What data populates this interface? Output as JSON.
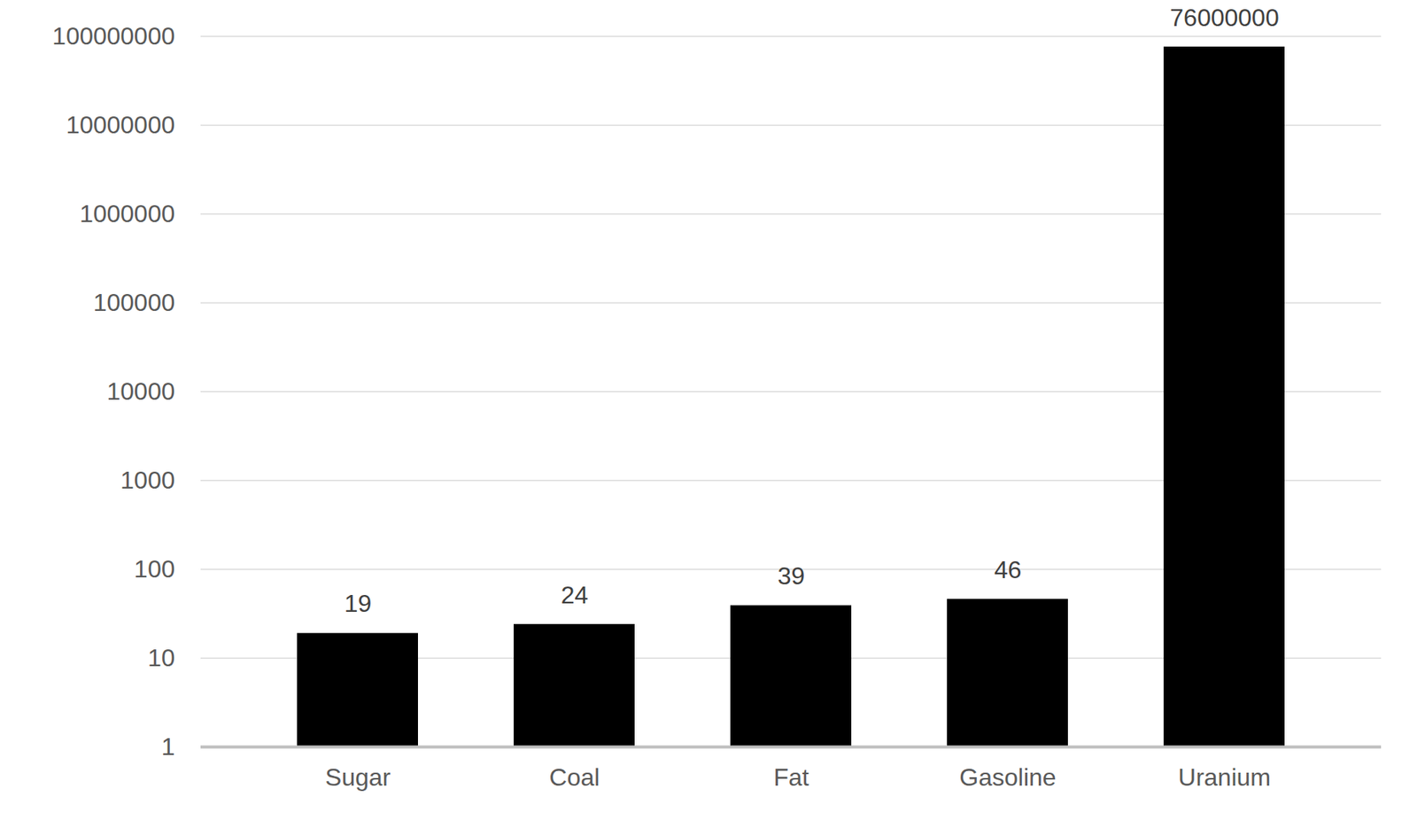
{
  "chart_data": {
    "type": "bar",
    "categories": [
      "Sugar",
      "Coal",
      "Fat",
      "Gasoline",
      "Uranium"
    ],
    "values": [
      19,
      24,
      39,
      46,
      76000000
    ],
    "color": "#000000",
    "log": "y",
    "ylim": [
      1,
      100000000
    ],
    "yticks": [
      1,
      10,
      100,
      1000,
      10000,
      100000,
      1000000,
      10000000,
      100000000
    ],
    "grid": true,
    "data_labels": true
  }
}
